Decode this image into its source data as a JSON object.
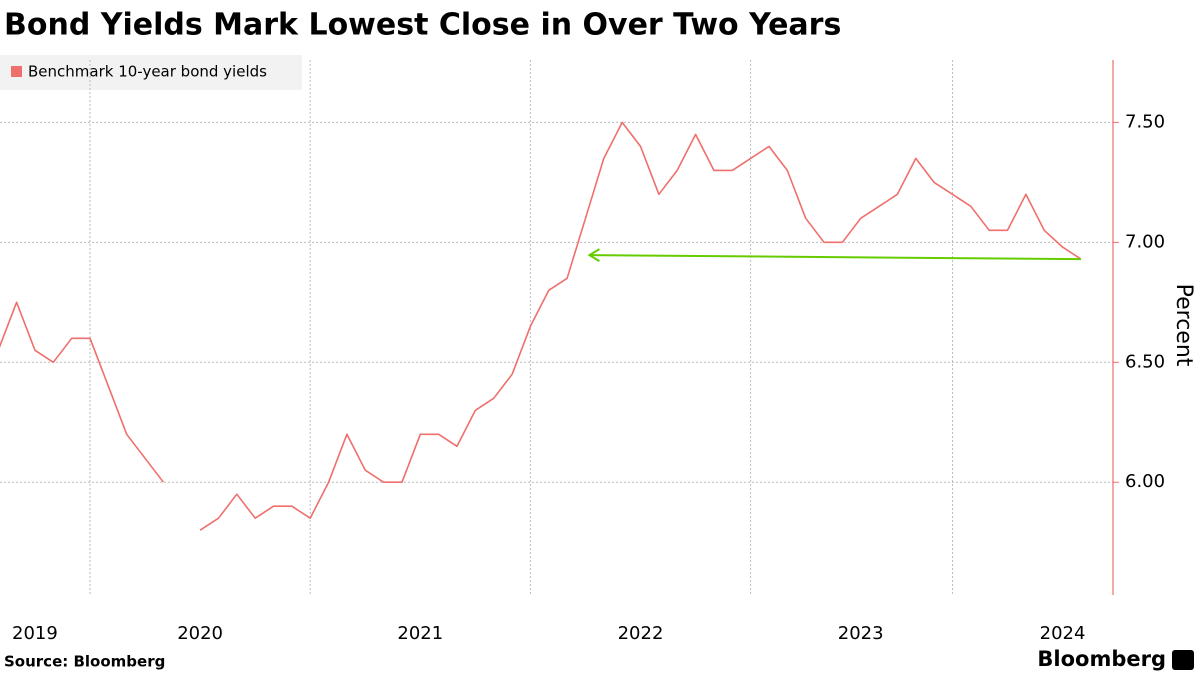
{
  "chart_data": {
    "type": "line",
    "title": "Bond Yields Mark Lowest Close in Over Two Years",
    "y_axis_label": "Percent",
    "source": "Source: Bloomberg",
    "brand": "Bloomberg",
    "categories": [
      null,
      null,
      "2019",
      null,
      null,
      null,
      null,
      null,
      null,
      null,
      null,
      "2020",
      null,
      null,
      null,
      null,
      null,
      null,
      null,
      null,
      null,
      null,
      null,
      "2021",
      null,
      null,
      null,
      null,
      null,
      null,
      null,
      null,
      null,
      null,
      null,
      "2022",
      null,
      null,
      null,
      null,
      null,
      null,
      null,
      null,
      null,
      null,
      null,
      "2023",
      null,
      null,
      null,
      null,
      null,
      null,
      null,
      null,
      null,
      null,
      "2024",
      null
    ],
    "series": [
      {
        "name": "Benchmark 10-year bond yields",
        "color": "#ef6f6c",
        "values": [
          6.55,
          6.75,
          6.55,
          6.5,
          6.6,
          6.6,
          6.4,
          6.2,
          6.1,
          6.0,
          null,
          5.8,
          5.85,
          5.95,
          5.85,
          5.9,
          5.9,
          5.85,
          6.0,
          6.2,
          6.05,
          6.0,
          6.0,
          6.2,
          6.2,
          6.15,
          6.3,
          6.35,
          6.45,
          6.65,
          6.8,
          6.85,
          7.1,
          7.35,
          7.5,
          7.4,
          7.2,
          7.3,
          7.45,
          7.3,
          7.3,
          7.35,
          7.4,
          7.3,
          7.1,
          7.0,
          7.0,
          7.1,
          7.15,
          7.2,
          7.35,
          7.25,
          7.2,
          7.15,
          7.05,
          7.05,
          7.2,
          7.05,
          6.98,
          6.93
        ]
      }
    ],
    "ylim": [
      5.53,
      7.76
    ],
    "yticks": [
      {
        "value": 6.0,
        "label": "6.00"
      },
      {
        "value": 6.5,
        "label": "6.50"
      },
      {
        "value": 7.0,
        "label": "7.00"
      },
      {
        "value": 7.5,
        "label": "7.50"
      }
    ],
    "grid": true,
    "annotation_color": "#66cc00"
  }
}
